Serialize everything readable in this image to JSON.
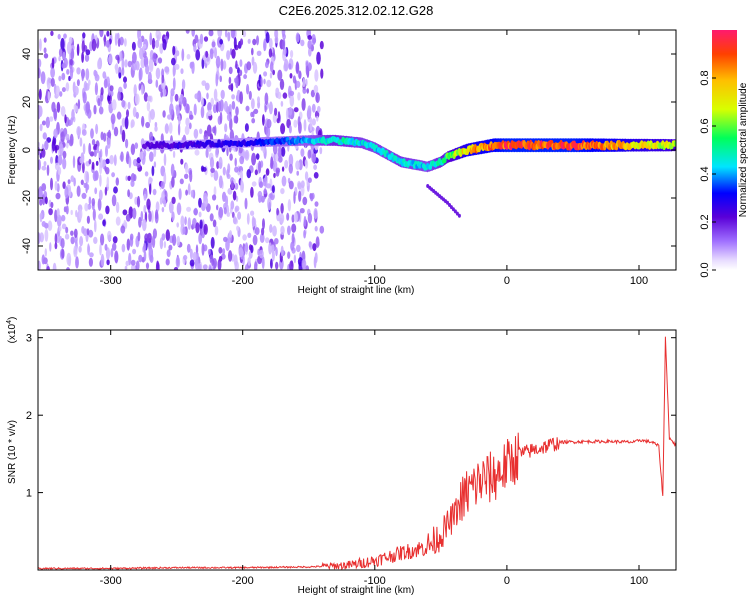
{
  "title": "C2E6.2025.312.02.12.G28",
  "chart_data": [
    {
      "type": "heatmap",
      "xlabel": "Height of straight line (km)",
      "ylabel": "Frequency (Hz)",
      "xlim": [
        -355,
        128
      ],
      "ylim": [
        -50,
        50
      ],
      "xticks": [
        -300,
        -200,
        -100,
        0,
        100
      ],
      "yticks": [
        -40,
        -20,
        0,
        20,
        40
      ],
      "colorbar": {
        "label": "Normalized spectral amplitude",
        "range": [
          0,
          1
        ],
        "ticks": [
          "0.0",
          "0.2",
          "0.4",
          "0.6",
          "0.8"
        ],
        "tick_values": [
          0.0,
          0.2,
          0.4,
          0.6,
          0.8
        ],
        "colormap": [
          "#ffffff",
          "#b48cff",
          "#5a00d8",
          "#0000ff",
          "#00e5ff",
          "#00ff5a",
          "#d8ff00",
          "#ffbf00",
          "#ff4000",
          "#ff1a6e"
        ]
      },
      "ridge": {
        "x": [
          -275,
          -250,
          -200,
          -150,
          -130,
          -110,
          -100,
          -90,
          -80,
          -70,
          -60,
          -50,
          -45,
          -40,
          -30,
          -20,
          -10,
          0,
          20,
          50,
          80,
          100,
          120,
          128
        ],
        "y": [
          2,
          2,
          3,
          4,
          4,
          3,
          1,
          -2,
          -5,
          -6,
          -7,
          -5,
          -3,
          -2,
          0,
          1,
          2,
          2,
          2,
          2,
          2,
          2,
          2,
          2
        ],
        "amplitude": [
          0.25,
          0.28,
          0.32,
          0.45,
          0.55,
          0.5,
          0.5,
          0.5,
          0.52,
          0.5,
          0.48,
          0.55,
          0.62,
          0.7,
          0.85,
          0.9,
          0.95,
          1.0,
          1.0,
          1.0,
          0.9,
          0.8,
          0.75,
          0.7
        ]
      },
      "noise_region": {
        "x": [
          -355,
          -140
        ],
        "y": [
          -50,
          50
        ],
        "amplitude": [
          0.05,
          0.2
        ]
      },
      "secondary_trail": {
        "x": [
          -60,
          -45,
          -35
        ],
        "y": [
          -15,
          -22,
          -28
        ],
        "amplitude": 0.2
      }
    },
    {
      "type": "line",
      "xlabel": "Height of straight line (km)",
      "ylabel": "SNR (10 * v/v)",
      "y_multiplier_base": "(x10",
      "y_multiplier_exp": "4",
      "y_multiplier_close": ")",
      "xlim": [
        -355,
        128
      ],
      "ylim": [
        0,
        3.1
      ],
      "xticks": [
        -300,
        -200,
        -100,
        0,
        100
      ],
      "yticks": [
        1,
        2,
        3
      ],
      "series": [
        {
          "color": "#e83030",
          "x": [
            -355,
            -300,
            -250,
            -200,
            -150,
            -120,
            -100,
            -80,
            -60,
            -50,
            -40,
            -30,
            -20,
            -10,
            0,
            10,
            20,
            30,
            40,
            60,
            80,
            97,
            100,
            110,
            115,
            118,
            120,
            123,
            126,
            128
          ],
          "y": [
            0.02,
            0.02,
            0.03,
            0.03,
            0.04,
            0.06,
            0.12,
            0.22,
            0.3,
            0.45,
            0.7,
            1.0,
            1.15,
            1.2,
            1.35,
            1.5,
            1.55,
            1.6,
            1.65,
            1.66,
            1.66,
            1.65,
            1.68,
            1.65,
            1.6,
            0.95,
            3.0,
            1.7,
            1.65,
            1.6
          ]
        }
      ]
    }
  ]
}
